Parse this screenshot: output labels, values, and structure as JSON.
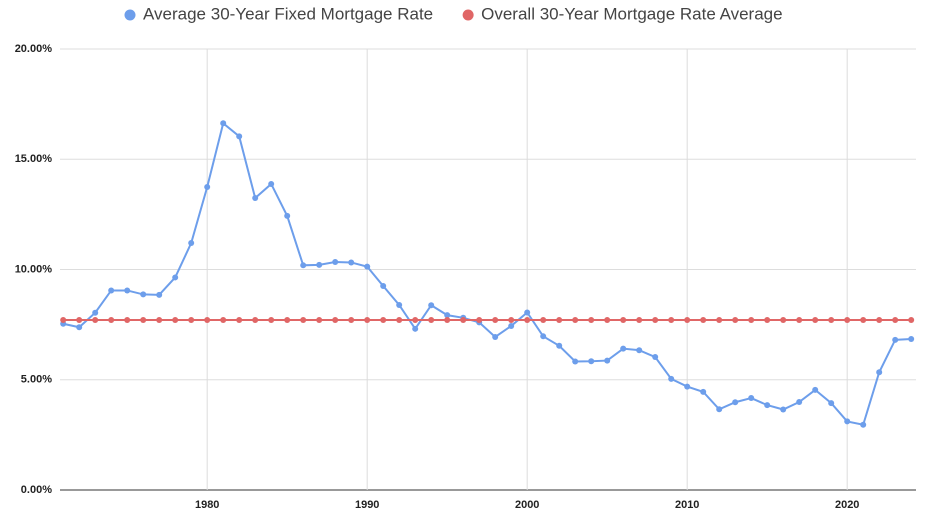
{
  "chart_data": {
    "type": "line",
    "x": [
      1971,
      1972,
      1973,
      1974,
      1975,
      1976,
      1977,
      1978,
      1979,
      1980,
      1981,
      1982,
      1983,
      1984,
      1985,
      1986,
      1987,
      1988,
      1989,
      1990,
      1991,
      1992,
      1993,
      1994,
      1995,
      1996,
      1997,
      1998,
      1999,
      2000,
      2001,
      2002,
      2003,
      2004,
      2005,
      2006,
      2007,
      2008,
      2009,
      2010,
      2011,
      2012,
      2013,
      2014,
      2015,
      2016,
      2017,
      2018,
      2019,
      2020,
      2021,
      2022,
      2023,
      2024
    ],
    "series": [
      {
        "name": "Average 30-Year Fixed Mortgage Rate",
        "color": "#6d9eeb",
        "values": [
          7.54,
          7.38,
          8.04,
          9.05,
          9.05,
          8.87,
          8.85,
          9.64,
          11.2,
          13.74,
          16.63,
          16.04,
          13.24,
          13.88,
          12.43,
          10.19,
          10.21,
          10.34,
          10.32,
          10.13,
          9.25,
          8.39,
          7.31,
          8.38,
          7.93,
          7.81,
          7.6,
          6.94,
          7.44,
          8.05,
          6.97,
          6.54,
          5.83,
          5.84,
          5.87,
          6.41,
          6.34,
          6.03,
          5.04,
          4.69,
          4.45,
          3.66,
          3.98,
          4.17,
          3.85,
          3.65,
          3.99,
          4.54,
          3.94,
          3.11,
          2.96,
          5.34,
          6.81,
          6.85
        ]
      },
      {
        "name": "Overall 30-Year Mortgage Rate Average",
        "color": "#e06666",
        "values": [
          7.71,
          7.71,
          7.71,
          7.71,
          7.71,
          7.71,
          7.71,
          7.71,
          7.71,
          7.71,
          7.71,
          7.71,
          7.71,
          7.71,
          7.71,
          7.71,
          7.71,
          7.71,
          7.71,
          7.71,
          7.71,
          7.71,
          7.71,
          7.71,
          7.71,
          7.71,
          7.71,
          7.71,
          7.71,
          7.71,
          7.71,
          7.71,
          7.71,
          7.71,
          7.71,
          7.71,
          7.71,
          7.71,
          7.71,
          7.71,
          7.71,
          7.71,
          7.71,
          7.71,
          7.71,
          7.71,
          7.71,
          7.71,
          7.71,
          7.71,
          7.71,
          7.71,
          7.71,
          7.71
        ]
      }
    ],
    "xlim": [
      1970.8,
      2024.3
    ],
    "xticks": [
      1980,
      1990,
      2000,
      2010,
      2020
    ],
    "ylim": [
      0,
      20
    ],
    "yticks": [
      {
        "value": 0,
        "label": "0.00%"
      },
      {
        "value": 5,
        "label": "5.00%"
      },
      {
        "value": 10,
        "label": "10.00%"
      },
      {
        "value": 15,
        "label": "15.00%"
      },
      {
        "value": 20,
        "label": "20.00%"
      }
    ],
    "grid": true,
    "legend": "top"
  }
}
